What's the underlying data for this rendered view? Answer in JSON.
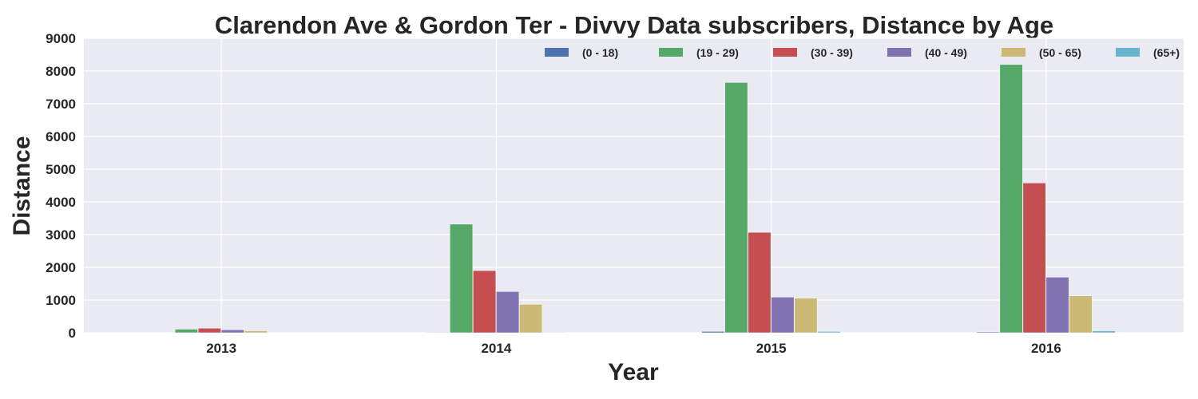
{
  "chart_data": {
    "type": "bar",
    "title": "Clarendon Ave & Gordon Ter - Divvy Data subscribers, Distance by Age",
    "xlabel": "Year",
    "ylabel": "Distance",
    "categories": [
      "2013",
      "2014",
      "2015",
      "2016"
    ],
    "ylim": [
      0,
      9000
    ],
    "yticks": [
      0,
      1000,
      2000,
      3000,
      4000,
      5000,
      6000,
      7000,
      8000,
      9000
    ],
    "grid": true,
    "legend_position": "top-right",
    "series": [
      {
        "name": "(0 - 18)",
        "color": "#4C72B0",
        "values": [
          0,
          15,
          40,
          25
        ]
      },
      {
        "name": "(19 - 29)",
        "color": "#55A868",
        "values": [
          110,
          3320,
          7650,
          8200
        ]
      },
      {
        "name": "(30 - 39)",
        "color": "#C44E52",
        "values": [
          140,
          1900,
          3070,
          4580
        ]
      },
      {
        "name": "(40 - 49)",
        "color": "#8172B2",
        "values": [
          90,
          1260,
          1090,
          1700
        ]
      },
      {
        "name": "(50 - 65)",
        "color": "#CCB974",
        "values": [
          60,
          870,
          1060,
          1130
        ]
      },
      {
        "name": "(65+)",
        "color": "#64B5CD",
        "values": [
          0,
          15,
          40,
          60
        ]
      }
    ]
  }
}
